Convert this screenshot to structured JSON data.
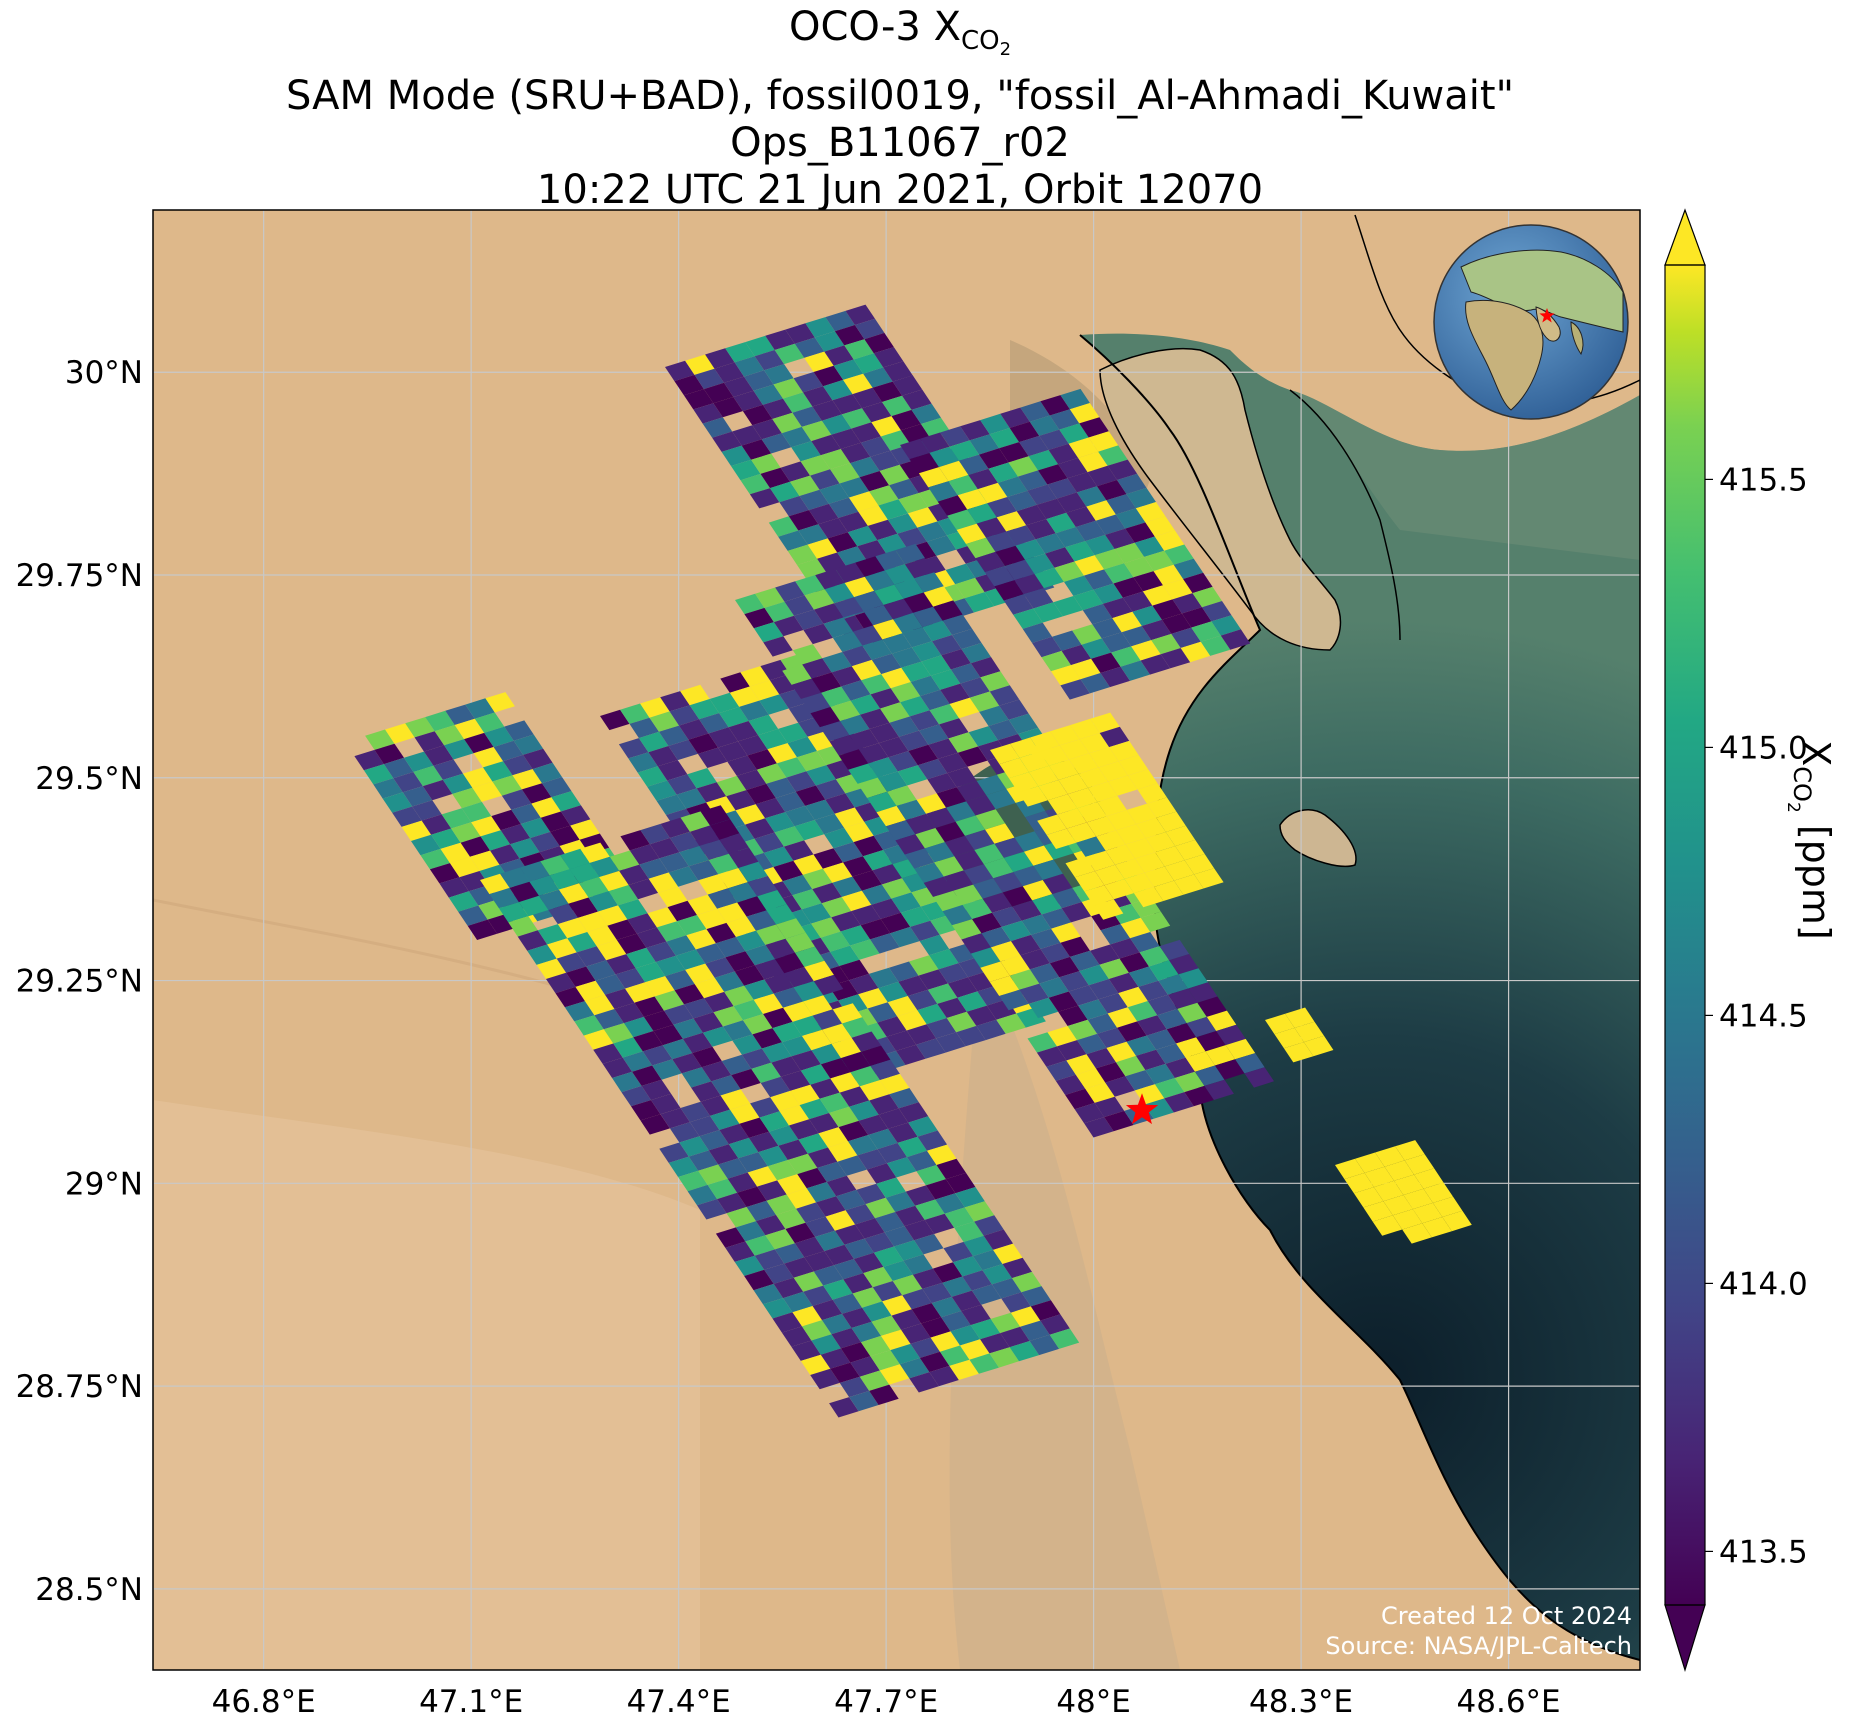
{
  "title": {
    "line1_main": "OCO-3 X",
    "line1_sub": "CO",
    "line1_subsub": "2",
    "line2": "SAM Mode (SRU+BAD), fossil0019, \"fossil_Al-Ahmadi_Kuwait\"",
    "line3": "Ops_B11067_r02",
    "line4": "10:22 UTC 21 Jun 2021, Orbit 12070"
  },
  "axes": {
    "lat_ticks": [
      "30°N",
      "29.75°N",
      "29.5°N",
      "29.25°N",
      "29°N",
      "28.75°N",
      "28.5°N"
    ],
    "lon_ticks": [
      "46.8°E",
      "47.1°E",
      "47.4°E",
      "47.7°E",
      "48°E",
      "48.3°E",
      "48.6°E"
    ],
    "lat_values": [
      30.0,
      29.75,
      29.5,
      29.25,
      29.0,
      28.75,
      28.5
    ],
    "lon_values": [
      46.8,
      47.1,
      47.4,
      47.7,
      48.0,
      48.3,
      48.6
    ],
    "lon_range": [
      46.64,
      48.79
    ],
    "lat_range": [
      28.4,
      30.2
    ],
    "grid": true
  },
  "colorbar": {
    "label_main": "X",
    "label_sub": "CO",
    "label_subsub": "2",
    "label_unit": " [ppm]",
    "ticks": [
      "413.5",
      "414.0",
      "414.5",
      "415.0",
      "415.5"
    ],
    "tick_values": [
      413.5,
      414.0,
      414.5,
      415.0,
      415.5
    ],
    "range": [
      413.4,
      415.9
    ],
    "colormap": "viridis",
    "extend": "both"
  },
  "target_site": {
    "name": "fossil_Al-Ahmadi_Kuwait",
    "lon": 48.07,
    "lat": 29.09,
    "marker": "red star"
  },
  "globe_inset": {
    "marker": "red star",
    "shown": true
  },
  "credits": {
    "created": "Created 12 Oct 2024",
    "source": "Source: NASA/JPL-Caltech"
  },
  "colors": {
    "desert": "#deb88a",
    "water_shallow": "#4a7a68",
    "water_deep": "#0c1e2a",
    "star": "#ff0000",
    "grid": "#c8c8c8"
  }
}
